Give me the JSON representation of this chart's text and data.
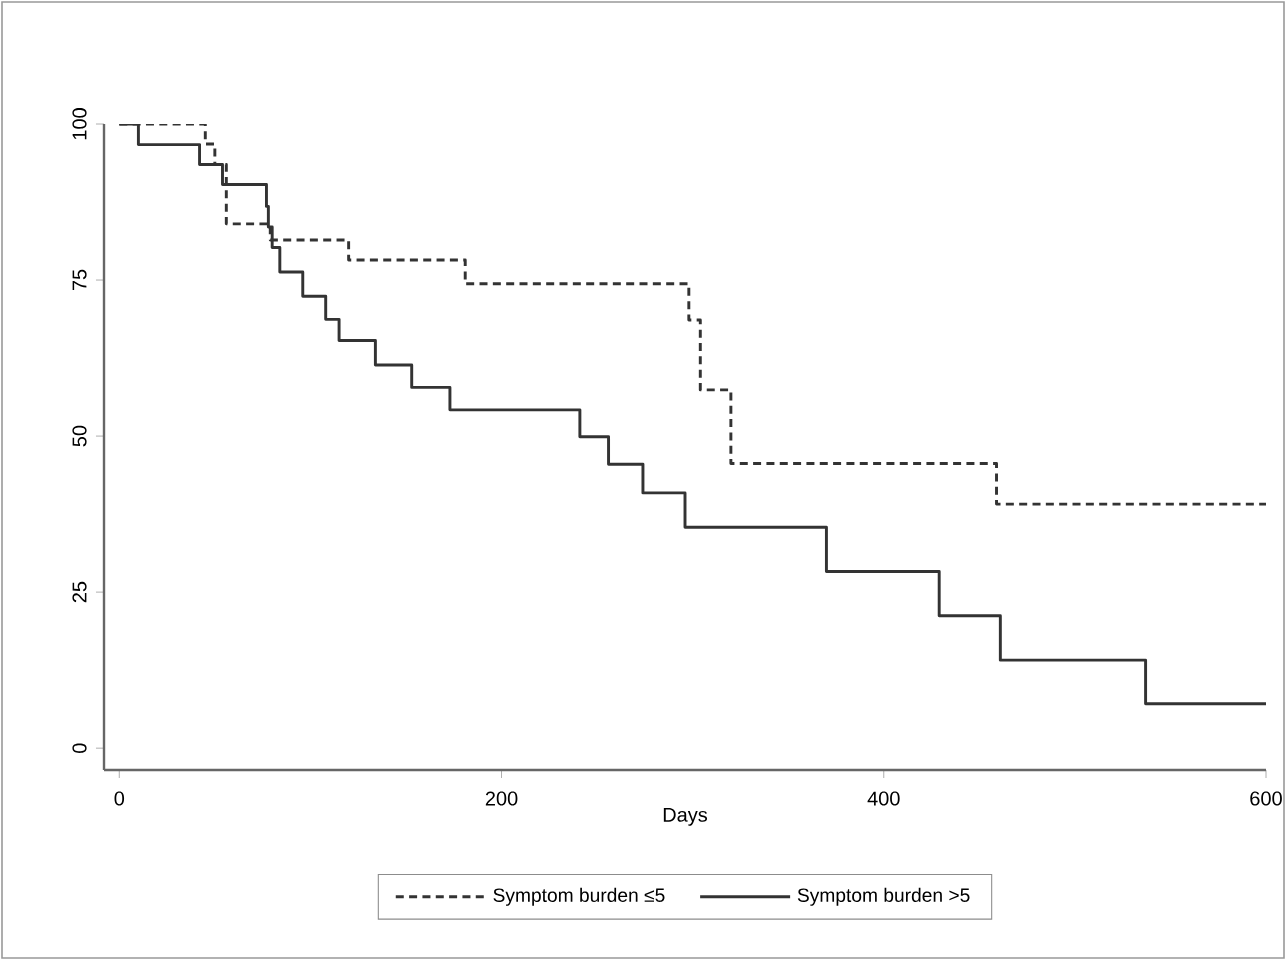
{
  "chart_data": {
    "type": "step",
    "xlabel": "Days",
    "xlim": [
      -8,
      600
    ],
    "ylim": [
      -3.5,
      100
    ],
    "xticks": [
      0,
      200,
      400,
      600
    ],
    "yticks": [
      0,
      25,
      50,
      75,
      100
    ],
    "legend": "bottom",
    "series": [
      {
        "name": "Symptom burden ≤5",
        "color": "#333333",
        "line_style": "dashed",
        "x": [
          0,
          45,
          50,
          56,
          79,
          120,
          181,
          298,
          304,
          320,
          459,
          600
        ],
        "values": [
          100,
          96.8,
          93.5,
          84.0,
          81.4,
          78.2,
          74.4,
          68.6,
          57.4,
          45.6,
          39.1,
          39.1
        ]
      },
      {
        "name": "Symptom burden >5",
        "color": "#333333",
        "line_style": "solid",
        "x": [
          0,
          10,
          42,
          54,
          77,
          78,
          80,
          84,
          96,
          108,
          115,
          134,
          153,
          173,
          241,
          256,
          274,
          296,
          370,
          429,
          461,
          537,
          600
        ],
        "values": [
          100,
          96.7,
          93.5,
          90.3,
          86.8,
          83.5,
          80.2,
          76.3,
          72.4,
          68.7,
          65.3,
          61.4,
          57.8,
          54.2,
          49.9,
          45.5,
          40.9,
          35.4,
          28.3,
          21.2,
          14.1,
          7.1,
          7.1
        ]
      }
    ]
  }
}
